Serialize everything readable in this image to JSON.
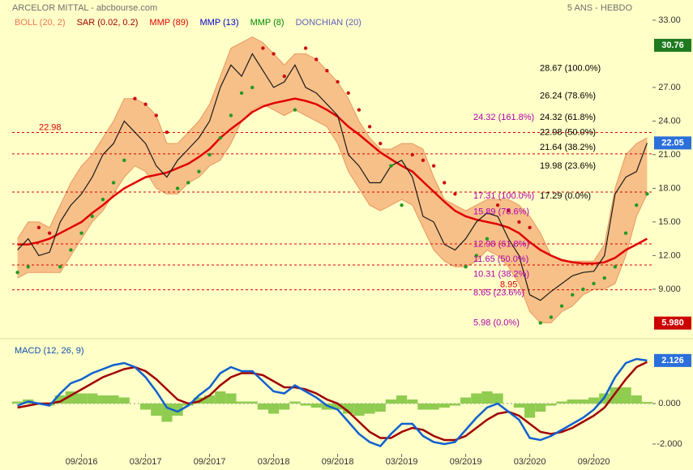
{
  "chart_data": [
    {
      "type": "price",
      "title": "ARCELOR MITTAL - abcbourse.com",
      "period": "5 ANS - HEBDO",
      "legend": [
        {
          "name": "BOLL (20, 2)",
          "color": "#f07850"
        },
        {
          "name": "SAR (0.02, 0.2)",
          "color": "#a00000"
        },
        {
          "name": "MMP (89)",
          "color": "#e00000"
        },
        {
          "name": "MMP (13)",
          "color": "#0000c8"
        },
        {
          "name": "MMP (8)",
          "color": "#008800"
        },
        {
          "name": "DONCHIAN (20)",
          "color": "#6060c0"
        }
      ],
      "categories": [
        null,
        null,
        null,
        null,
        null,
        null,
        "09/2016",
        null,
        null,
        null,
        null,
        null,
        "03/2017",
        null,
        null,
        null,
        null,
        null,
        "09/2017",
        null,
        null,
        null,
        null,
        null,
        "03/2018",
        null,
        null,
        null,
        null,
        null,
        "09/2018",
        null,
        null,
        null,
        null,
        null,
        "03/2019",
        null,
        null,
        null,
        null,
        null,
        "09/2019",
        null,
        null,
        null,
        null,
        null,
        "03/2020",
        null,
        null,
        null,
        null,
        null,
        "09/2020",
        null,
        null,
        null,
        null,
        null
      ],
      "values": [
        12.5,
        13.5,
        12,
        12.3,
        15,
        16.5,
        17.5,
        19,
        21,
        22,
        24,
        23,
        22,
        20,
        19,
        20.5,
        21.5,
        22.5,
        24,
        27,
        29,
        28,
        30,
        28.5,
        27,
        27.5,
        29,
        27,
        26.5,
        25.5,
        24.5,
        21,
        20,
        18.5,
        18.5,
        20,
        20.5,
        19,
        15.5,
        15,
        13,
        12.5,
        13.5,
        15,
        15.8,
        15.5,
        13.5,
        12,
        8.5,
        8,
        8.8,
        9.5,
        10.2,
        10.5,
        10.6,
        12,
        17.5,
        19,
        19.5,
        22.05
      ],
      "color": "#1a1a1a",
      "bollinger": {
        "color": "#f7c088",
        "edge": "#e89860",
        "upper": [
          13.5,
          15,
          15,
          14.5,
          16.5,
          18.5,
          20,
          21,
          22.5,
          24,
          26,
          26,
          25.5,
          24.5,
          22,
          22,
          23,
          24,
          25.5,
          28,
          30.5,
          31,
          31.5,
          31,
          30,
          29,
          30,
          30,
          29.5,
          28.5,
          27.5,
          26,
          24,
          22.5,
          21.5,
          21.5,
          22,
          22,
          21.5,
          19,
          17,
          16.5,
          16,
          16.5,
          17,
          17,
          17,
          16.5,
          15.5,
          14,
          12,
          11.5,
          11.5,
          11.5,
          11.5,
          13,
          18,
          21,
          22,
          22.5
        ],
        "lower": [
          10,
          10.5,
          10.5,
          10.5,
          10.5,
          12,
          13.5,
          15,
          16,
          17.5,
          19,
          20,
          19.5,
          18,
          17.5,
          17.5,
          18.5,
          19,
          20,
          20.5,
          22,
          24,
          25,
          25.5,
          25,
          24.5,
          25,
          24.5,
          24,
          23.5,
          22,
          19.5,
          18,
          16.5,
          16,
          16.5,
          17,
          16.5,
          14.5,
          12.5,
          11.5,
          11,
          11,
          11.5,
          12.5,
          12,
          11,
          9.5,
          7,
          6,
          6,
          7,
          7.5,
          8.5,
          9,
          9,
          9.5,
          12,
          15.5,
          17.5
        ]
      },
      "series": [
        {
          "color": "#e00000",
          "values": [
            13,
            13,
            13.2,
            13.5,
            14,
            14.5,
            15,
            15.8,
            16.5,
            17.3,
            18,
            18.5,
            19,
            19.2,
            19.4,
            19.8,
            20.2,
            20.8,
            21.5,
            22.5,
            23.3,
            24,
            24.8,
            25.3,
            25.6,
            25.8,
            26,
            25.8,
            25.5,
            25,
            24.4,
            23.5,
            22.8,
            22,
            21.2,
            20.6,
            20,
            19.5,
            18.6,
            17.7,
            16.8,
            16,
            15.5,
            15.2,
            15,
            14.8,
            14.5,
            14,
            13.2,
            12.5,
            12,
            11.6,
            11.4,
            11.3,
            11.3,
            11.4,
            11.8,
            12.5,
            13,
            13.5
          ]
        }
      ],
      "sar": {
        "up_color": "#229922",
        "down_color": "#cc1010",
        "values": [
          10.5,
          11,
          14.5,
          14,
          11,
          12.5,
          14,
          15.5,
          17,
          18.5,
          20.5,
          26,
          25.5,
          24.5,
          23,
          18,
          18.5,
          19.5,
          21,
          22.5,
          24.5,
          26.5,
          27,
          30.5,
          30,
          28,
          25,
          30.5,
          29.5,
          28.5,
          27.5,
          26.5,
          25,
          23.5,
          22,
          20,
          16.5,
          21,
          20.5,
          20,
          18.5,
          17.5,
          11,
          12,
          13.5,
          16.5,
          16,
          15,
          14.5,
          6,
          6.5,
          7.5,
          8.5,
          9,
          9.5,
          10,
          11,
          14,
          16.5,
          17.5
        ]
      },
      "ylim": [
        4.8,
        34.8
      ],
      "yticks": [
        {
          "value": 33,
          "label": "33.00"
        },
        {
          "value": 27,
          "label": "27.00"
        },
        {
          "value": 24,
          "label": "24.00"
        },
        {
          "value": 21,
          "label": "21.00"
        },
        {
          "value": 18,
          "label": "18.00"
        },
        {
          "value": 15,
          "label": "15.00"
        },
        {
          "value": 12,
          "label": "12.00"
        },
        {
          "value": 9,
          "label": "9.000"
        }
      ],
      "dashed_levels": [
        22.98,
        21.07,
        17.67,
        13.04,
        11.16,
        8.95
      ],
      "dashed_color": "#dd0000",
      "level_labels": [
        22.98,
        8.95
      ],
      "fib_levels": [
        {
          "value": 28.67,
          "label": "28.67  (100.0%)"
        },
        {
          "value": 26.24,
          "label": "26.24  (78.6%)"
        },
        {
          "value": 24.32,
          "label": "24.32  (61.8%)"
        },
        {
          "value": 22.98,
          "label": "22.98  (50.0%)"
        },
        {
          "value": 21.64,
          "label": "21.64  (38.2%)"
        },
        {
          "value": 19.98,
          "label": "19.98  (23.6%)"
        },
        {
          "value": 17.29,
          "label": "17.29  (0.0%)"
        }
      ],
      "fib_ext_levels": [
        {
          "value": 24.32,
          "label": "24.32  (161.8%)"
        },
        {
          "value": 17.31,
          "label": "17.31  (100.0%)"
        },
        {
          "value": 15.89,
          "label": "15.89  (78.6%)"
        },
        {
          "value": 12.98,
          "label": "12.98  (61.8%)"
        },
        {
          "value": 11.65,
          "label": "11.65  (50.0%)"
        },
        {
          "value": 10.31,
          "label": "10.31  (38.2%)"
        },
        {
          "value": 8.65,
          "label": "8.65  (23.6%)"
        },
        {
          "value": 5.98,
          "label": "5.98  (0.0%)"
        }
      ],
      "fib_color": "#000000",
      "fib_ext_color": "#b000b0",
      "price_tags": [
        {
          "value": 30.76,
          "color": "#1f7a1f"
        },
        {
          "value": 22.05,
          "color": "#2a6fdb"
        },
        {
          "value": 5.98,
          "label": "5.980",
          "color": "#cc0000"
        }
      ]
    },
    {
      "type": "macd",
      "title": "MACD (12, 26, 9)",
      "macd": {
        "color": "#1060d0",
        "values": [
          -0.1,
          0.1,
          0,
          -0.1,
          0.5,
          1,
          1.2,
          1.5,
          1.7,
          1.9,
          2,
          1.8,
          1.3,
          0.6,
          -0.2,
          -0.4,
          -0.1,
          0.4,
          0.8,
          1.5,
          1.8,
          1.6,
          1.6,
          1.1,
          0.6,
          0.5,
          0.9,
          0.6,
          0.3,
          -0.1,
          -0.3,
          -0.9,
          -1.5,
          -1.9,
          -2.1,
          -1.5,
          -1,
          -1,
          -1.6,
          -1.9,
          -2,
          -1.9,
          -1.3,
          -0.7,
          -0.2,
          0,
          -0.4,
          -0.8,
          -1.7,
          -1.8,
          -1.6,
          -1.3,
          -1,
          -0.7,
          -0.3,
          0.3,
          1.3,
          2,
          2.2,
          2.126
        ]
      },
      "signal": {
        "color": "#a00000",
        "values": [
          -0.2,
          -0.1,
          0,
          0,
          0.1,
          0.4,
          0.7,
          1,
          1.3,
          1.5,
          1.7,
          1.8,
          1.6,
          1.2,
          0.7,
          0.2,
          0,
          0.1,
          0.4,
          0.9,
          1.3,
          1.5,
          1.5,
          1.4,
          1.1,
          0.8,
          0.8,
          0.7,
          0.5,
          0.2,
          0,
          -0.4,
          -0.9,
          -1.4,
          -1.7,
          -1.7,
          -1.4,
          -1.2,
          -1.3,
          -1.6,
          -1.8,
          -1.8,
          -1.6,
          -1.2,
          -0.8,
          -0.5,
          -0.4,
          -0.6,
          -1,
          -1.4,
          -1.5,
          -1.4,
          -1.2,
          -0.9,
          -0.6,
          -0.2,
          0.5,
          1.2,
          1.8,
          2.05
        ]
      },
      "histogram": {
        "color": "#8fcc50",
        "values": [
          0.1,
          0.2,
          0,
          -0.1,
          0.4,
          0.6,
          0.5,
          0.5,
          0.4,
          0.4,
          0.3,
          0,
          -0.3,
          -0.6,
          -0.9,
          -0.6,
          -0.1,
          0.3,
          0.4,
          0.6,
          0.5,
          0.1,
          0.1,
          -0.3,
          -0.5,
          -0.3,
          0.1,
          -0.1,
          -0.2,
          -0.3,
          -0.3,
          -0.5,
          -0.6,
          -0.5,
          -0.4,
          0.2,
          0.4,
          0.2,
          -0.3,
          -0.3,
          -0.2,
          -0.1,
          0.3,
          0.5,
          0.6,
          0.5,
          0,
          -0.2,
          -0.7,
          -0.4,
          -0.1,
          0.1,
          0.2,
          0.2,
          0.3,
          0.5,
          0.8,
          0.8,
          0.4,
          0.08
        ]
      },
      "ylim": [
        -2.48,
        2.92
      ],
      "yticks": [
        {
          "value": 0,
          "label": "0.000"
        },
        {
          "value": -2,
          "label": "-2.000"
        }
      ],
      "value_tag": {
        "value": 2.126,
        "color": "#2a6fdb"
      }
    }
  ]
}
